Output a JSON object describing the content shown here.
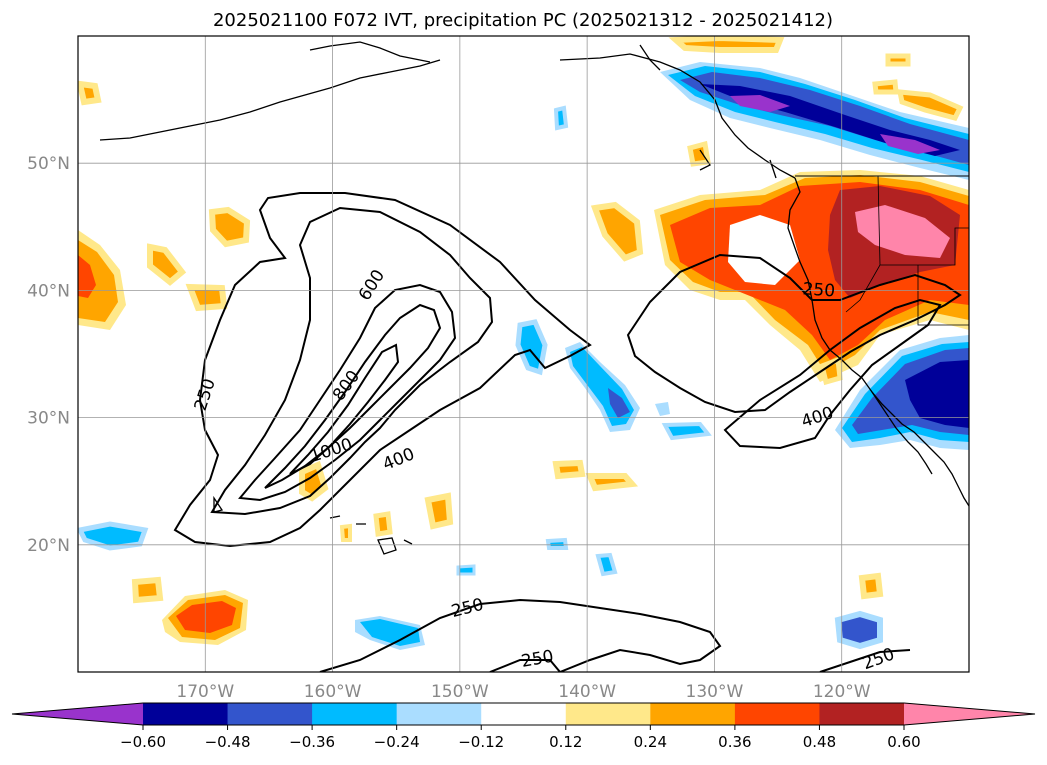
{
  "title": "2025021100 F072 IVT, precipitation PC (2025021312 - 2025021412)",
  "axes": {
    "lon_range": [
      -180,
      -110
    ],
    "lat_range": [
      10,
      60
    ],
    "lon_ticks": [
      {
        "value": -170,
        "label": "170°W"
      },
      {
        "value": -160,
        "label": "160°W"
      },
      {
        "value": -150,
        "label": "150°W"
      },
      {
        "value": -140,
        "label": "140°W"
      },
      {
        "value": -130,
        "label": "130°W"
      },
      {
        "value": -120,
        "label": "120°W"
      }
    ],
    "lat_ticks": [
      {
        "value": 50,
        "label": "50°N"
      },
      {
        "value": 40,
        "label": "40°N"
      },
      {
        "value": 30,
        "label": "30°N"
      },
      {
        "value": 20,
        "label": "20°N"
      }
    ],
    "grid": true
  },
  "colorbar": {
    "orientation": "horizontal",
    "placement": "bottom",
    "extend": "both",
    "colors": [
      "#9933cc",
      "#000099",
      "#3355cc",
      "#00bbff",
      "#aaddff",
      "#ffffff",
      "#ffe88a",
      "#ffa500",
      "#ff4500",
      "#b22222",
      "#ff85aa"
    ],
    "labels": [
      "−0.60",
      "−0.48",
      "−0.36",
      "−0.24",
      "−0.12",
      "0.12",
      "0.24",
      "0.36",
      "0.48",
      "0.60"
    ]
  },
  "ivt_contours": {
    "levels": [
      250,
      400,
      600,
      800,
      1000
    ],
    "labels": [
      {
        "text": "250",
        "lon": -170,
        "lat": 31.8,
        "rot": -72
      },
      {
        "text": "600",
        "lon": -156.9,
        "lat": 40.4,
        "rot": -58
      },
      {
        "text": "800",
        "lon": -158.9,
        "lat": 32.5,
        "rot": -54
      },
      {
        "text": "1000",
        "lon": -160.1,
        "lat": 27.4,
        "rot": -18
      },
      {
        "text": "400",
        "lon": -154.8,
        "lat": 26.7,
        "rot": -22
      },
      {
        "text": "250",
        "lon": -121.8,
        "lat": 40.0,
        "rot": 4
      },
      {
        "text": "400",
        "lon": -121.9,
        "lat": 30.0,
        "rot": -18
      },
      {
        "text": "250",
        "lon": -149.4,
        "lat": 15.0,
        "rot": -14
      },
      {
        "text": "250",
        "lon": -143.9,
        "lat": 11.0,
        "rot": -10
      },
      {
        "text": "250",
        "lon": -117.1,
        "lat": 11.0,
        "rot": -20
      }
    ]
  }
}
